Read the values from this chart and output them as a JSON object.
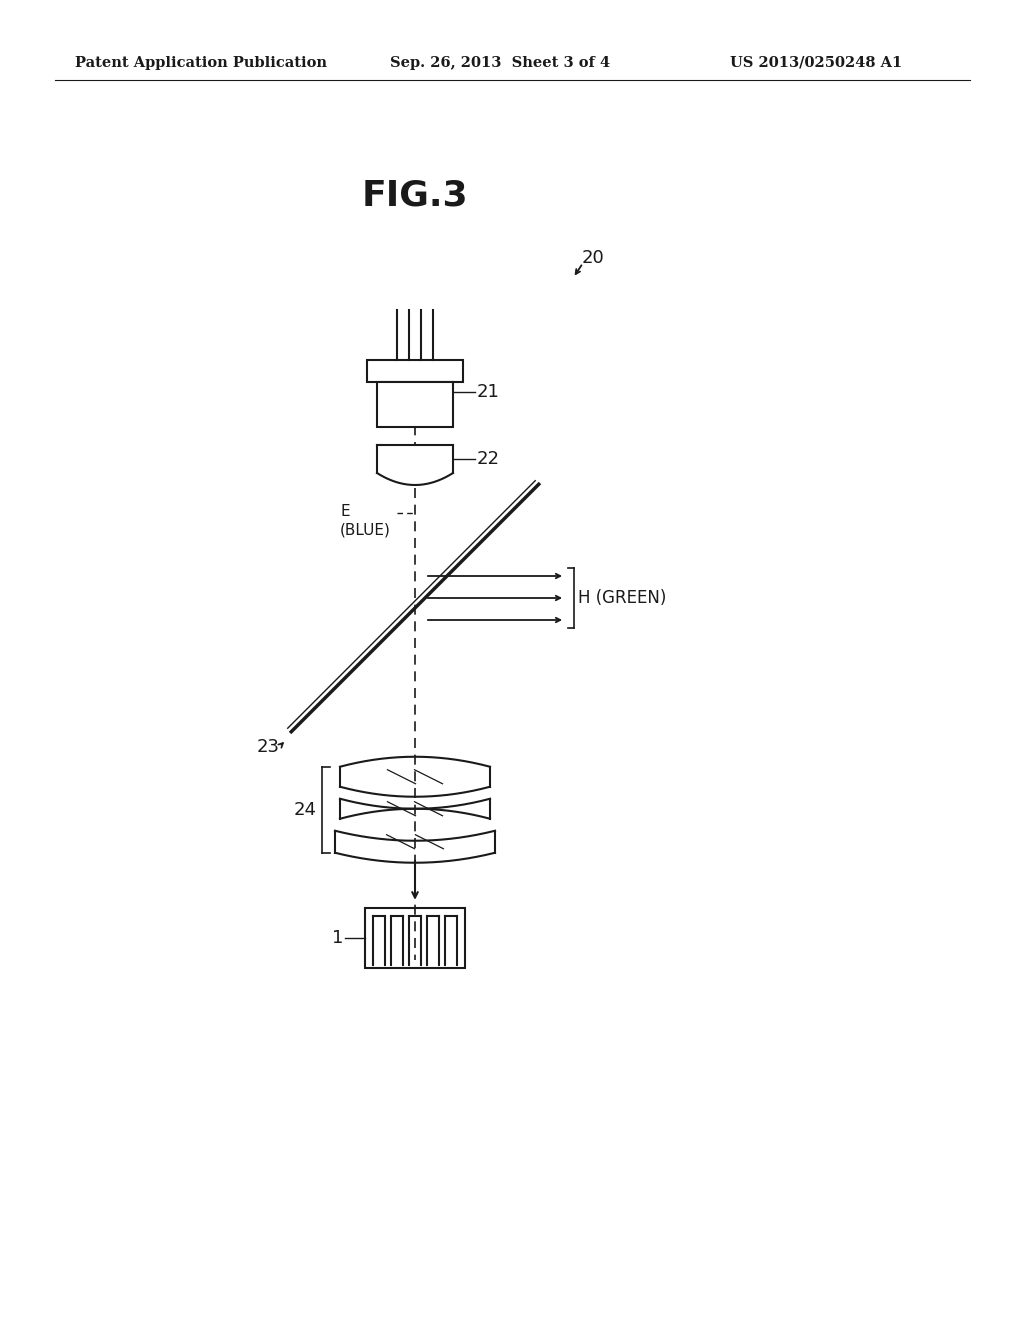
{
  "title": "FIG.3",
  "header_left": "Patent Application Publication",
  "header_center": "Sep. 26, 2013  Sheet 3 of 4",
  "header_right": "US 2013/0250248 A1",
  "bg_color": "#ffffff",
  "line_color": "#1a1a1a",
  "label_20": "20",
  "label_21": "21",
  "label_22": "22",
  "label_23": "23",
  "label_24": "24",
  "label_1": "1",
  "label_E": "E\n(BLUE)",
  "label_H": "H (GREEN)"
}
